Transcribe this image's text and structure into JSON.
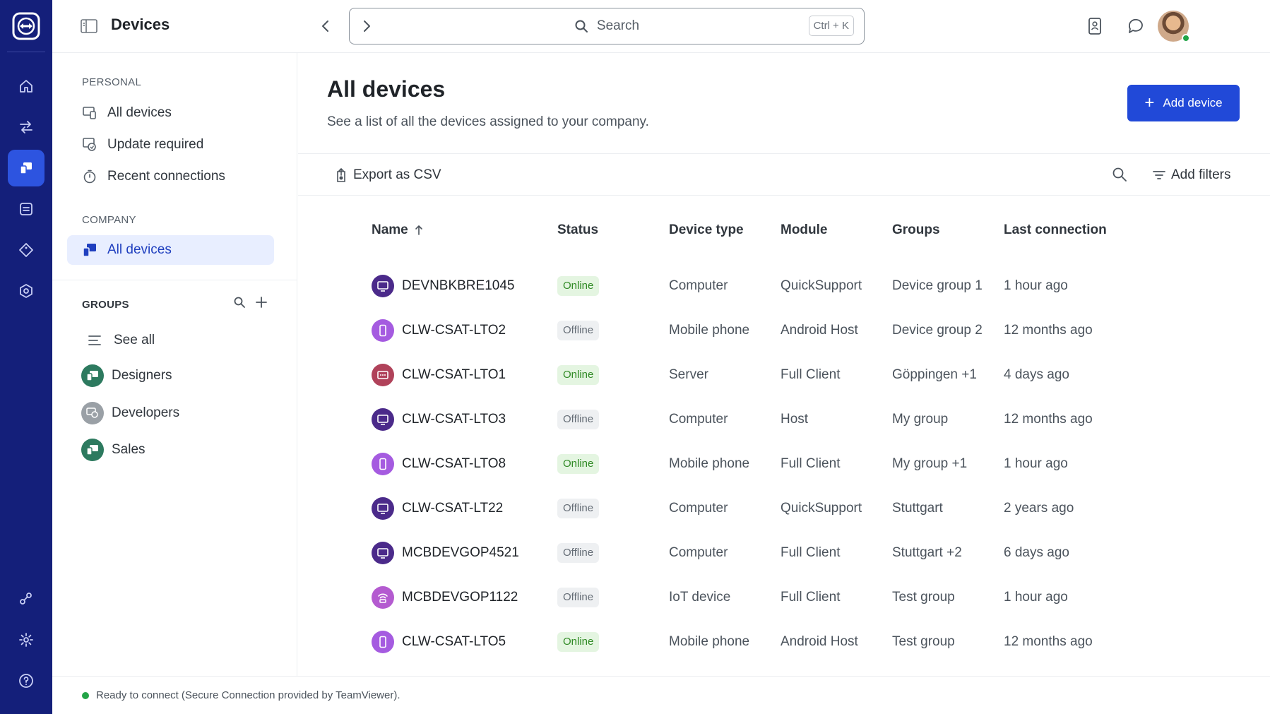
{
  "app": {
    "brand_color": "#141f7a",
    "accent_color": "#2149d8"
  },
  "header": {
    "title": "Devices",
    "search_placeholder": "Search",
    "search_shortcut": "Ctrl + K"
  },
  "rail": {
    "items": [
      {
        "icon": "home-icon"
      },
      {
        "icon": "connections-icon"
      },
      {
        "icon": "devices-icon",
        "active": true
      },
      {
        "icon": "sessions-icon"
      },
      {
        "icon": "tag-icon"
      },
      {
        "icon": "security-icon"
      },
      {
        "icon": "integrations-icon"
      },
      {
        "icon": "gear-icon"
      },
      {
        "icon": "help-icon"
      }
    ]
  },
  "sidebar": {
    "personal_label": "PERSONAL",
    "personal_items": [
      {
        "label": "All devices",
        "icon": "devices-list-icon"
      },
      {
        "label": "Update required",
        "icon": "update-icon"
      },
      {
        "label": "Recent connections",
        "icon": "timer-icon"
      }
    ],
    "company_label": "COMPANY",
    "company_items": [
      {
        "label": "All devices",
        "icon": "devices-icon",
        "active": true
      }
    ],
    "groups_label": "GROUPS",
    "see_all": "See all",
    "groups": [
      {
        "label": "Designers",
        "color": "#2d7a5f"
      },
      {
        "label": "Developers",
        "color": "#9aa0a6"
      },
      {
        "label": "Sales",
        "color": "#2d7a5f"
      }
    ]
  },
  "content": {
    "title": "All devices",
    "subtitle": "See a list of all the devices assigned to your company.",
    "add_button": "Add device",
    "export_label": "Export as CSV",
    "filters_label": "Add filters"
  },
  "table": {
    "columns": [
      "Name",
      "Status",
      "Device type",
      "Module",
      "Groups",
      "Last connection"
    ],
    "rows": [
      {
        "name": "DEVNBKBRE1045",
        "status": "Online",
        "type": "Computer",
        "module": "QuickSupport",
        "groups": "Device group 1",
        "last": "1 hour ago",
        "icon": "computer-icon"
      },
      {
        "name": "CLW-CSAT-LTO2",
        "status": "Offline",
        "type": "Mobile phone",
        "module": "Android Host",
        "groups": "Device group 2",
        "last": "12 months ago",
        "icon": "phone-icon"
      },
      {
        "name": "CLW-CSAT-LTO1",
        "status": "Online",
        "type": "Server",
        "module": "Full Client",
        "groups": "Göppingen +1",
        "last": "4 days ago",
        "icon": "server-icon"
      },
      {
        "name": "CLW-CSAT-LTO3",
        "status": "Offline",
        "type": "Computer",
        "module": "Host",
        "groups": "My group",
        "last": "12 months ago",
        "icon": "computer-icon"
      },
      {
        "name": "CLW-CSAT-LTO8",
        "status": "Online",
        "type": "Mobile phone",
        "module": "Full Client",
        "groups": "My group +1",
        "last": "1 hour ago",
        "icon": "phone-icon"
      },
      {
        "name": "CLW-CSAT-LT22",
        "status": "Offline",
        "type": "Computer",
        "module": "QuickSupport",
        "groups": "Stuttgart",
        "last": "2 years ago",
        "icon": "computer-icon"
      },
      {
        "name": "MCBDEVGOP4521",
        "status": "Offline",
        "type": "Computer",
        "module": "Full Client",
        "groups": "Stuttgart +2",
        "last": "6 days ago",
        "icon": "computer-icon"
      },
      {
        "name": "MCBDEVGOP1122",
        "status": "Offline",
        "type": "IoT device",
        "module": "Full Client",
        "groups": "Test group",
        "last": "1 hour ago",
        "icon": "iot-icon"
      },
      {
        "name": "CLW-CSAT-LTO5",
        "status": "Online",
        "type": "Mobile phone",
        "module": "Android Host",
        "groups": "Test group",
        "last": "12 months ago",
        "icon": "phone-icon"
      }
    ]
  },
  "statusbar": {
    "text": "Ready to connect (Secure Connection provided by TeamViewer)."
  }
}
